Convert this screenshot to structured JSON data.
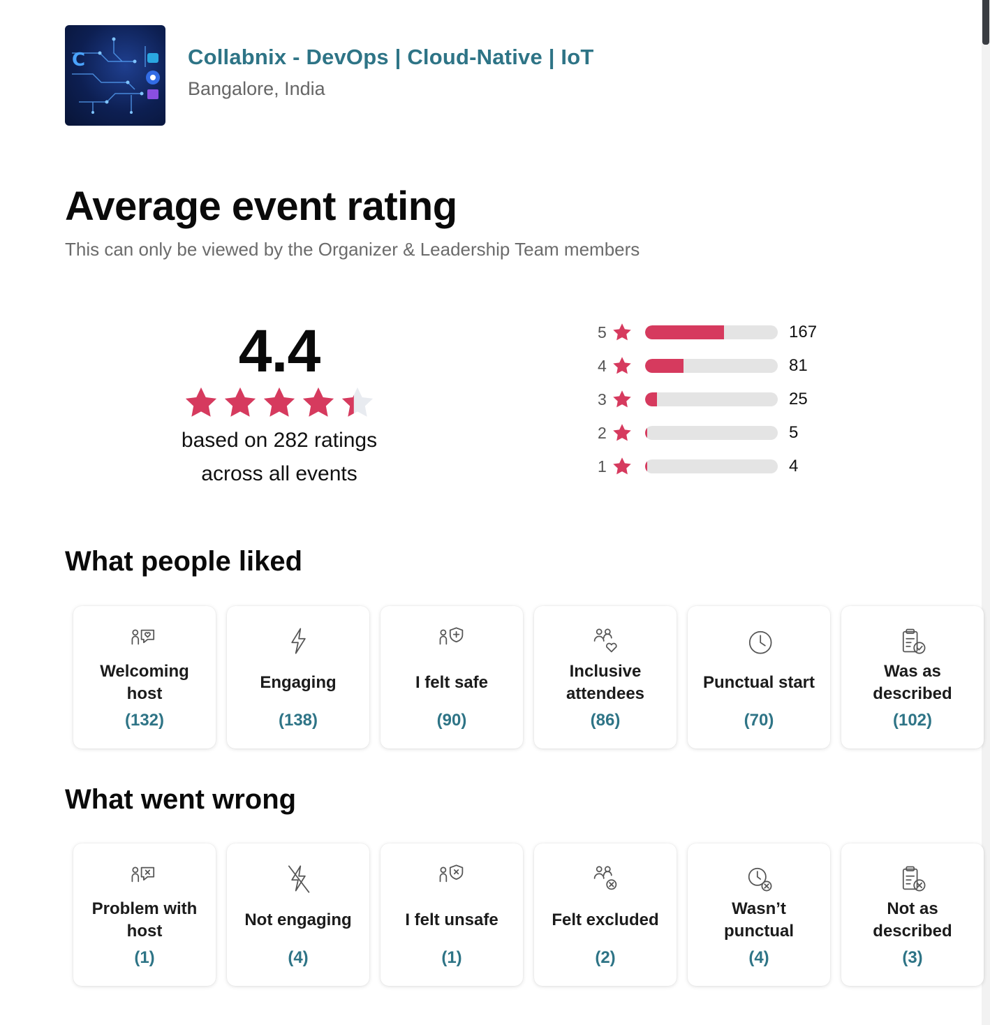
{
  "group": {
    "name": "Collabnix - DevOps | Cloud-Native | IoT",
    "location": "Bangalore, India"
  },
  "page": {
    "title": "Average event rating",
    "subtitle": "This can only be viewed by the Organizer & Leadership Team members"
  },
  "rating": {
    "average": "4.4",
    "average_value": 4.4,
    "caption_line1": "based on 282 ratings",
    "caption_line2": "across all events",
    "distribution": [
      {
        "stars": "5",
        "count": "167",
        "value": 167
      },
      {
        "stars": "4",
        "count": "81",
        "value": 81
      },
      {
        "stars": "3",
        "count": "25",
        "value": 25
      },
      {
        "stars": "2",
        "count": "5",
        "value": 5
      },
      {
        "stars": "1",
        "count": "4",
        "value": 4
      }
    ]
  },
  "liked": {
    "title": "What people liked",
    "items": [
      {
        "label": "Welcoming host",
        "count": "(132)",
        "icon": "chat-heart-icon"
      },
      {
        "label": "Engaging",
        "count": "(138)",
        "icon": "lightning-icon"
      },
      {
        "label": "I felt safe",
        "count": "(90)",
        "icon": "shield-plus-icon"
      },
      {
        "label": "Inclusive attendees",
        "count": "(86)",
        "icon": "people-heart-icon"
      },
      {
        "label": "Punctual start",
        "count": "(70)",
        "icon": "clock-icon"
      },
      {
        "label": "Was as described",
        "count": "(102)",
        "icon": "clipboard-check-icon"
      }
    ]
  },
  "wrong": {
    "title": "What went wrong",
    "items": [
      {
        "label": "Problem with host",
        "count": "(1)",
        "icon": "chat-x-icon"
      },
      {
        "label": "Not engaging",
        "count": "(4)",
        "icon": "lightning-off-icon"
      },
      {
        "label": "I felt unsafe",
        "count": "(1)",
        "icon": "shield-x-icon"
      },
      {
        "label": "Felt excluded",
        "count": "(2)",
        "icon": "people-x-icon"
      },
      {
        "label": "Wasn’t punctual",
        "count": "(4)",
        "icon": "clock-x-icon"
      },
      {
        "label": "Not as described",
        "count": "(3)",
        "icon": "clipboard-x-icon"
      }
    ]
  },
  "colors": {
    "accent": "#d63a5e",
    "link": "#2e7486",
    "bar_track": "#e4e4e4"
  }
}
